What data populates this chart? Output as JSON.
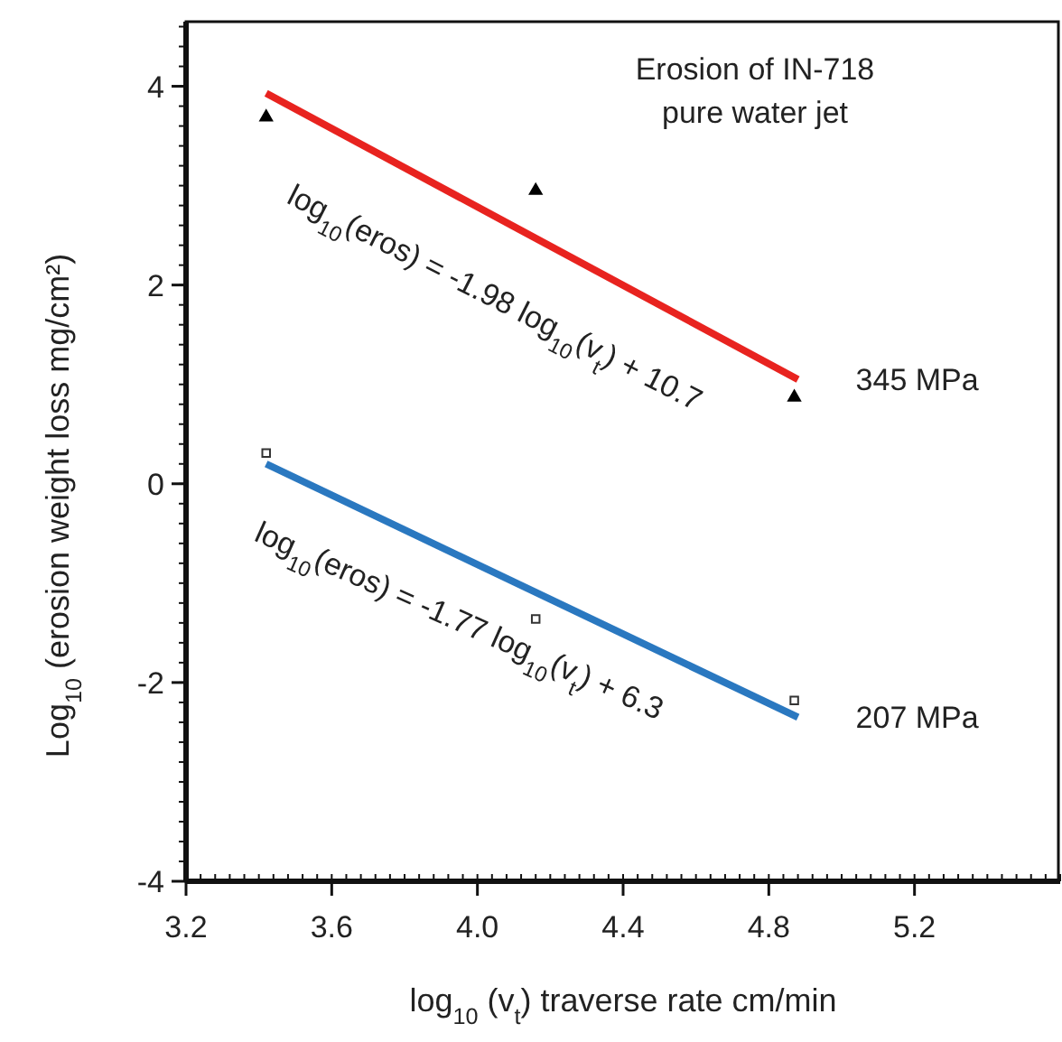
{
  "chart_data": {
    "type": "scatter",
    "title": "Erosion of IN-718\npure water jet",
    "xlabel": "log$_{10}$ (v$_{t}$) traverse rate cm/min",
    "ylabel": "Log$_{10}$ (erosion weight loss mg/cm²)",
    "xlim": [
      3.2,
      5.6
    ],
    "ylim": [
      -4,
      4.65
    ],
    "xticks": [
      3.2,
      3.6,
      {
        "value": 4.0,
        "label": "4.0"
      },
      4.4,
      4.8,
      5.2
    ],
    "yticks": [
      -4,
      -2,
      0,
      2,
      4
    ],
    "series": [
      {
        "color": "#000000",
        "marker": "triangle",
        "x": [
          3.42,
          4.16,
          4.87
        ],
        "values": [
          3.69,
          2.95,
          0.87
        ]
      },
      {
        "type": "line",
        "name": "345 MPa",
        "color": "#e8231f",
        "marker": "none",
        "x": [
          3.42,
          4.88
        ],
        "values": [
          3.93,
          1.05
        ]
      },
      {
        "color": "#333333",
        "marker": "square",
        "x": [
          3.42,
          4.16,
          4.87
        ],
        "values": [
          0.31,
          -1.36,
          -2.18
        ]
      },
      {
        "type": "line",
        "name": "207 MPa",
        "color": "#2a78c0",
        "marker": "none",
        "x": [
          3.42,
          4.88
        ],
        "values": [
          0.2,
          -2.35
        ]
      }
    ],
    "annotations": [
      "log$_{10}$(eros) = -1.98 log$_{10}$(v$_{t}$) + 10.7",
      "log$_{10}$(eros) = -1.77 log$_{10}$(v$_{t}$) + 6.3"
    ]
  }
}
